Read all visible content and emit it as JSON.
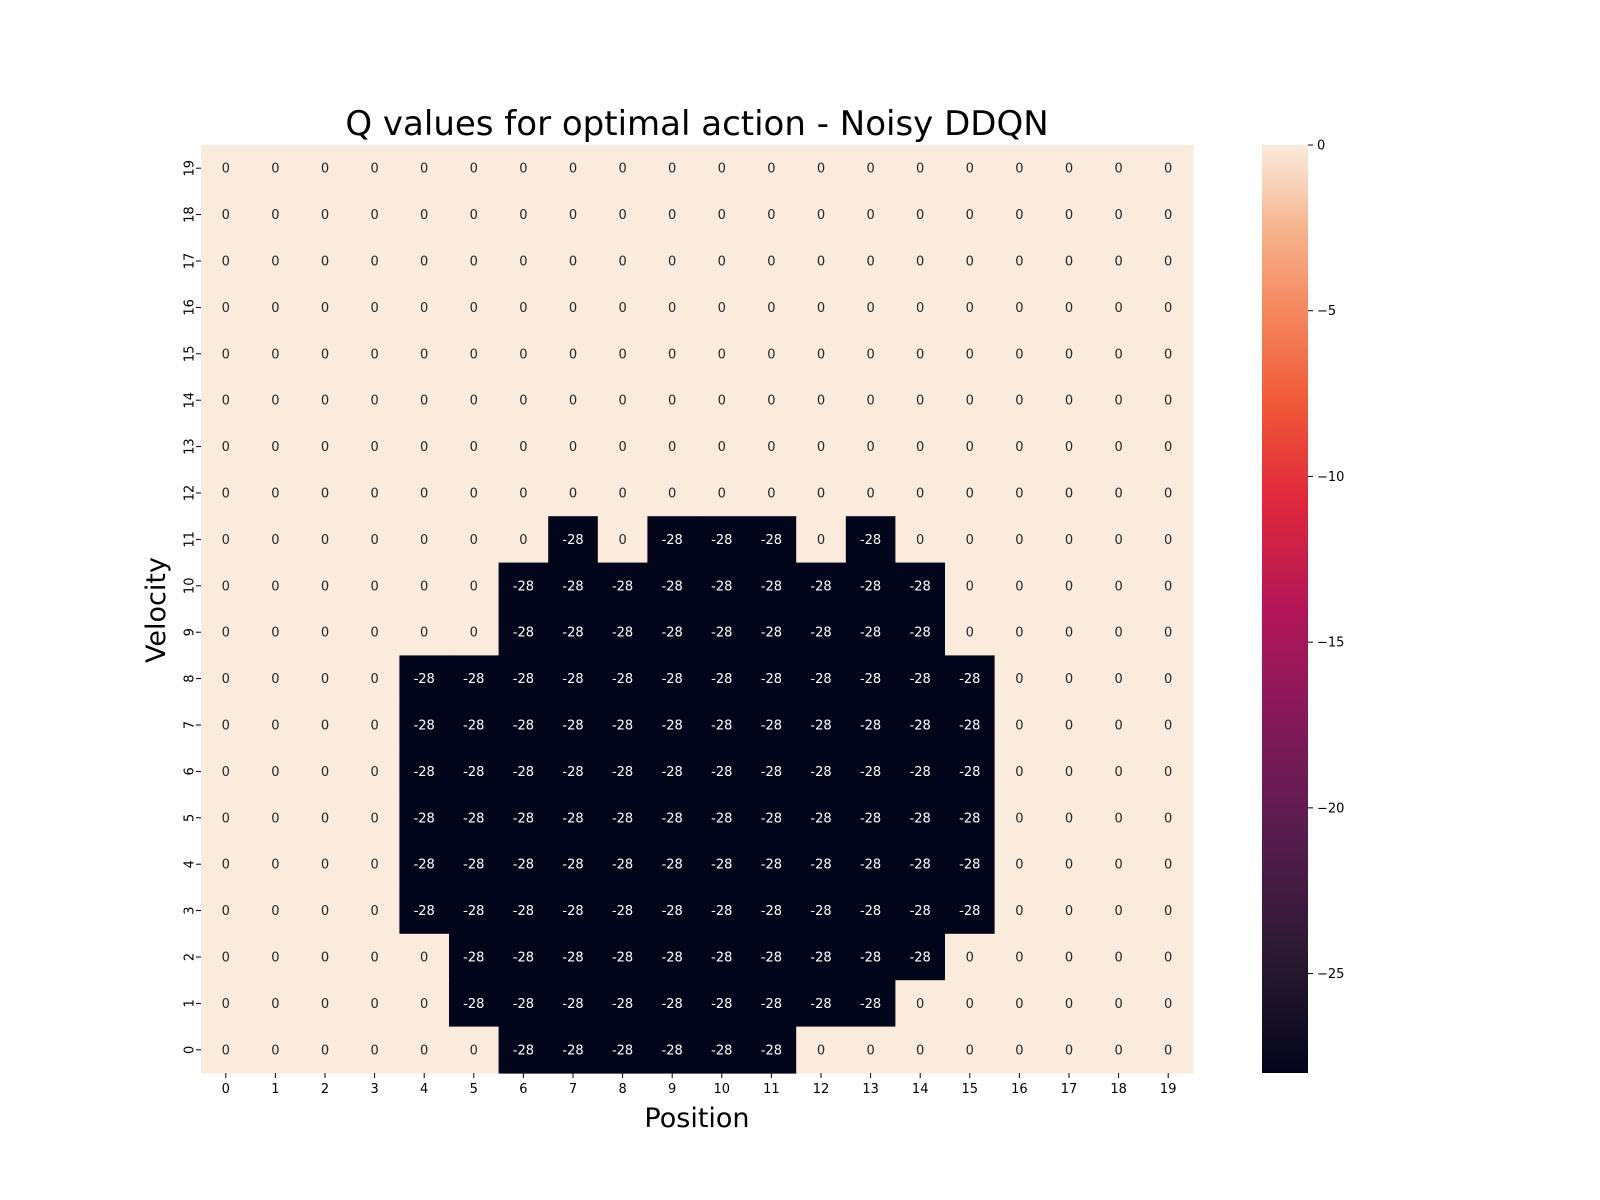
{
  "chart_data": {
    "type": "heatmap",
    "title": "Q values for optimal action - Noisy DDQN",
    "xlabel": "Position",
    "ylabel": "Velocity",
    "x_categories": [
      "0",
      "1",
      "2",
      "3",
      "4",
      "5",
      "6",
      "7",
      "8",
      "9",
      "10",
      "11",
      "12",
      "13",
      "14",
      "15",
      "16",
      "17",
      "18",
      "19"
    ],
    "y_categories": [
      "19",
      "18",
      "17",
      "16",
      "15",
      "14",
      "13",
      "12",
      "11",
      "10",
      "9",
      "8",
      "7",
      "6",
      "5",
      "4",
      "3",
      "2",
      "1",
      "0"
    ],
    "values": [
      [
        0,
        0,
        0,
        0,
        0,
        0,
        0,
        0,
        0,
        0,
        0,
        0,
        0,
        0,
        0,
        0,
        0,
        0,
        0,
        0
      ],
      [
        0,
        0,
        0,
        0,
        0,
        0,
        0,
        0,
        0,
        0,
        0,
        0,
        0,
        0,
        0,
        0,
        0,
        0,
        0,
        0
      ],
      [
        0,
        0,
        0,
        0,
        0,
        0,
        0,
        0,
        0,
        0,
        0,
        0,
        0,
        0,
        0,
        0,
        0,
        0,
        0,
        0
      ],
      [
        0,
        0,
        0,
        0,
        0,
        0,
        0,
        0,
        0,
        0,
        0,
        0,
        0,
        0,
        0,
        0,
        0,
        0,
        0,
        0
      ],
      [
        0,
        0,
        0,
        0,
        0,
        0,
        0,
        0,
        0,
        0,
        0,
        0,
        0,
        0,
        0,
        0,
        0,
        0,
        0,
        0
      ],
      [
        0,
        0,
        0,
        0,
        0,
        0,
        0,
        0,
        0,
        0,
        0,
        0,
        0,
        0,
        0,
        0,
        0,
        0,
        0,
        0
      ],
      [
        0,
        0,
        0,
        0,
        0,
        0,
        0,
        0,
        0,
        0,
        0,
        0,
        0,
        0,
        0,
        0,
        0,
        0,
        0,
        0
      ],
      [
        0,
        0,
        0,
        0,
        0,
        0,
        0,
        0,
        0,
        0,
        0,
        0,
        0,
        0,
        0,
        0,
        0,
        0,
        0,
        0
      ],
      [
        0,
        0,
        0,
        0,
        0,
        0,
        0,
        -28,
        0,
        -28,
        -28,
        -28,
        0,
        -28,
        0,
        0,
        0,
        0,
        0,
        0
      ],
      [
        0,
        0,
        0,
        0,
        0,
        0,
        -28,
        -28,
        -28,
        -28,
        -28,
        -28,
        -28,
        -28,
        -28,
        0,
        0,
        0,
        0,
        0
      ],
      [
        0,
        0,
        0,
        0,
        0,
        0,
        -28,
        -28,
        -28,
        -28,
        -28,
        -28,
        -28,
        -28,
        -28,
        0,
        0,
        0,
        0,
        0
      ],
      [
        0,
        0,
        0,
        0,
        -28,
        -28,
        -28,
        -28,
        -28,
        -28,
        -28,
        -28,
        -28,
        -28,
        -28,
        -28,
        0,
        0,
        0,
        0
      ],
      [
        0,
        0,
        0,
        0,
        -28,
        -28,
        -28,
        -28,
        -28,
        -28,
        -28,
        -28,
        -28,
        -28,
        -28,
        -28,
        0,
        0,
        0,
        0
      ],
      [
        0,
        0,
        0,
        0,
        -28,
        -28,
        -28,
        -28,
        -28,
        -28,
        -28,
        -28,
        -28,
        -28,
        -28,
        -28,
        0,
        0,
        0,
        0
      ],
      [
        0,
        0,
        0,
        0,
        -28,
        -28,
        -28,
        -28,
        -28,
        -28,
        -28,
        -28,
        -28,
        -28,
        -28,
        -28,
        0,
        0,
        0,
        0
      ],
      [
        0,
        0,
        0,
        0,
        -28,
        -28,
        -28,
        -28,
        -28,
        -28,
        -28,
        -28,
        -28,
        -28,
        -28,
        -28,
        0,
        0,
        0,
        0
      ],
      [
        0,
        0,
        0,
        0,
        -28,
        -28,
        -28,
        -28,
        -28,
        -28,
        -28,
        -28,
        -28,
        -28,
        -28,
        -28,
        0,
        0,
        0,
        0
      ],
      [
        0,
        0,
        0,
        0,
        0,
        -28,
        -28,
        -28,
        -28,
        -28,
        -28,
        -28,
        -28,
        -28,
        -28,
        0,
        0,
        0,
        0,
        0
      ],
      [
        0,
        0,
        0,
        0,
        0,
        -28,
        -28,
        -28,
        -28,
        -28,
        -28,
        -28,
        -28,
        -28,
        0,
        0,
        0,
        0,
        0,
        0
      ],
      [
        0,
        0,
        0,
        0,
        0,
        0,
        -28,
        -28,
        -28,
        -28,
        -28,
        -28,
        0,
        0,
        0,
        0,
        0,
        0,
        0,
        0
      ]
    ],
    "vmin": -28,
    "vmax": 0,
    "colormap": "rocket",
    "color_low": "#03051a",
    "color_high": "#faebdd",
    "colorbar_ticks": [
      0,
      -5,
      -10,
      -15,
      -20,
      -25
    ],
    "colorbar_tick_labels": [
      "0",
      "−5",
      "−10",
      "−15",
      "−20",
      "−25"
    ],
    "grid": false,
    "annotate": true
  }
}
